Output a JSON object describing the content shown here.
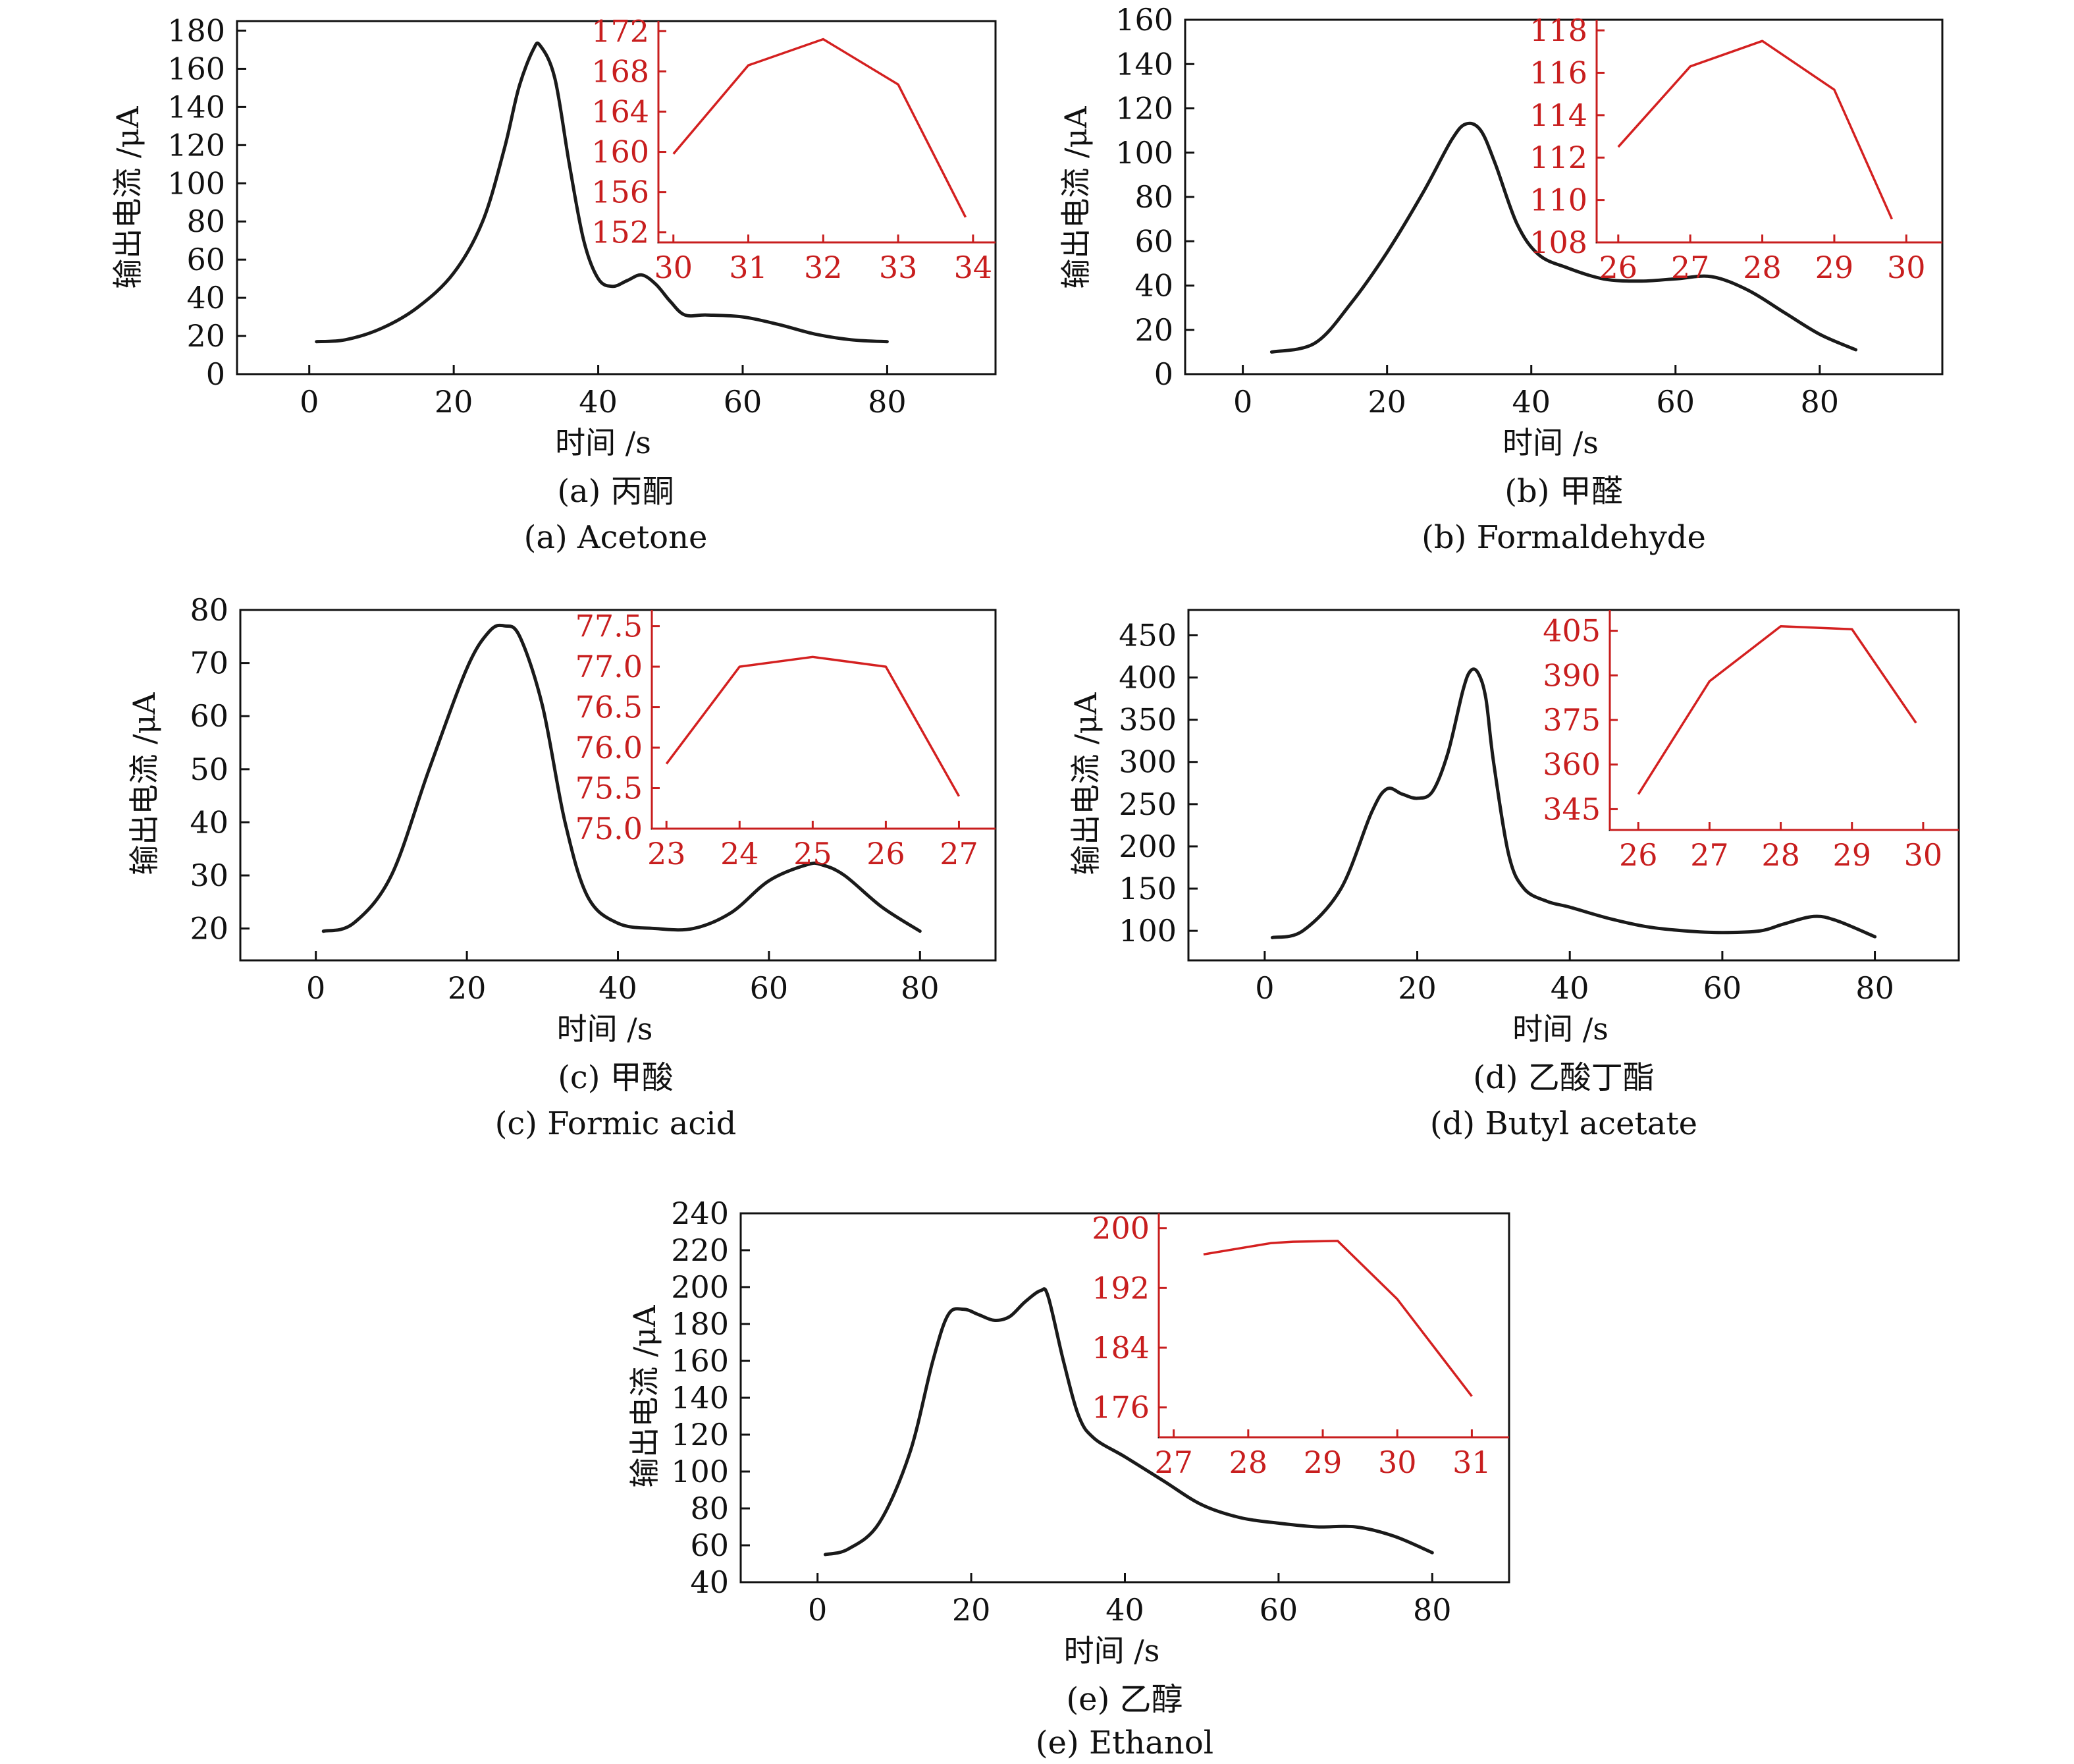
{
  "chart_data": [
    {
      "type": "line",
      "caption_zh": "(a) 丙酮",
      "caption_en": "(a) Acetone",
      "xlabel": "时间 /s",
      "ylabel": "输出电流 /μA",
      "xlim": [
        -10,
        95
      ],
      "ylim": [
        0,
        185
      ],
      "xticks": [
        0,
        20,
        40,
        60,
        80
      ],
      "yticks": [
        0,
        20,
        40,
        60,
        80,
        100,
        120,
        140,
        160,
        180
      ],
      "series": [
        {
          "x": [
            1,
            5,
            10,
            15,
            20,
            24,
            27,
            29,
            31,
            32,
            34,
            36,
            38,
            40,
            42,
            44,
            46,
            48,
            50,
            52,
            55,
            60,
            65,
            70,
            75,
            80
          ],
          "y": [
            17,
            18,
            24,
            35,
            53,
            80,
            118,
            150,
            170,
            172,
            155,
            110,
            70,
            50,
            46,
            49,
            52,
            47,
            38,
            31,
            31,
            30,
            26,
            21,
            18,
            17
          ]
        }
      ],
      "inset": {
        "xlim": [
          29.8,
          34.3
        ],
        "ylim": [
          151,
          173
        ],
        "xticks": [
          30,
          31,
          32,
          33,
          34
        ],
        "yticks": [
          152,
          156,
          160,
          164,
          168,
          172
        ],
        "x": [
          30,
          31,
          32,
          33,
          33.9
        ],
        "y": [
          159.8,
          168.6,
          171.2,
          166.7,
          153.5
        ]
      }
    },
    {
      "type": "line",
      "caption_zh": "(b) 甲醛",
      "caption_en": "(b) Formaldehyde",
      "xlabel": "时间 /s",
      "ylabel": "输出电流 /μA",
      "xlim": [
        -8,
        97
      ],
      "ylim": [
        0,
        160
      ],
      "xticks": [
        0,
        20,
        40,
        60,
        80
      ],
      "yticks": [
        0,
        20,
        40,
        60,
        80,
        100,
        120,
        140,
        160
      ],
      "series": [
        {
          "x": [
            4,
            10,
            15,
            20,
            25,
            29,
            31,
            33,
            35,
            38,
            41,
            45,
            50,
            55,
            60,
            65,
            70,
            75,
            80,
            85
          ],
          "y": [
            10,
            14,
            32,
            55,
            82,
            106,
            113,
            110,
            95,
            68,
            54,
            48,
            43,
            42,
            43,
            44,
            38,
            28,
            18,
            11
          ]
        }
      ],
      "inset": {
        "xlim": [
          25.7,
          30.5
        ],
        "ylim": [
          108,
          118.5
        ],
        "xticks": [
          26,
          27,
          28,
          29,
          30
        ],
        "yticks": [
          108,
          110,
          112,
          114,
          116,
          118
        ],
        "x": [
          26,
          27,
          28,
          29,
          29.8
        ],
        "y": [
          112.5,
          116.3,
          117.5,
          115.2,
          109.1
        ]
      }
    },
    {
      "type": "line",
      "caption_zh": "(c) 甲酸",
      "caption_en": "(c) Formic acid",
      "xlabel": "时间 /s",
      "ylabel": "输出电流 /μA",
      "xlim": [
        -10,
        90
      ],
      "ylim": [
        14,
        80
      ],
      "xticks": [
        0,
        20,
        40,
        60,
        80
      ],
      "yticks": [
        20,
        30,
        40,
        50,
        60,
        70,
        80
      ],
      "series": [
        {
          "x": [
            1,
            5,
            10,
            15,
            20,
            23,
            25,
            27,
            30,
            33,
            36,
            40,
            45,
            50,
            55,
            60,
            65,
            67,
            70,
            75,
            80
          ],
          "y": [
            19.5,
            21,
            30,
            50,
            69,
            76,
            77,
            75,
            62,
            40,
            26,
            21,
            20,
            20,
            23,
            29,
            32,
            32,
            30,
            24,
            19.5
          ]
        }
      ],
      "inset": {
        "xlim": [
          22.8,
          27.5
        ],
        "ylim": [
          75.0,
          77.7
        ],
        "xticks": [
          23,
          24,
          25,
          26,
          27
        ],
        "yticks": [
          75.0,
          75.5,
          76.0,
          76.5,
          77.0,
          77.5
        ],
        "x": [
          23,
          24,
          25,
          26,
          27
        ],
        "y": [
          75.8,
          77.0,
          77.12,
          77.0,
          75.4
        ]
      }
    },
    {
      "type": "line",
      "caption_zh": "(d) 乙酸丁酯",
      "caption_en": "(d) Butyl acetate",
      "xlabel": "时间 /s",
      "ylabel": "输出电流 /μA",
      "xlim": [
        -10,
        91
      ],
      "ylim": [
        65,
        480
      ],
      "xticks": [
        0,
        20,
        40,
        60,
        80
      ],
      "yticks": [
        100,
        150,
        200,
        250,
        300,
        350,
        400,
        450
      ],
      "series": [
        {
          "x": [
            1,
            5,
            10,
            14,
            16,
            18,
            20,
            22,
            24,
            26,
            27,
            28,
            29,
            30,
            32,
            34,
            37,
            40,
            45,
            50,
            55,
            60,
            65,
            68,
            72,
            75,
            80
          ],
          "y": [
            92,
            100,
            150,
            240,
            268,
            262,
            257,
            265,
            310,
            385,
            408,
            405,
            375,
            300,
            190,
            150,
            135,
            128,
            115,
            105,
            100,
            98,
            100,
            108,
            117,
            112,
            93
          ]
        }
      ],
      "inset": {
        "xlim": [
          25.6,
          30.5
        ],
        "ylim": [
          338,
          412
        ],
        "xticks": [
          26,
          27,
          28,
          29,
          30
        ],
        "yticks": [
          345,
          360,
          375,
          390,
          405
        ],
        "x": [
          26,
          27,
          28,
          29,
          29.9
        ],
        "y": [
          350,
          388,
          406.5,
          405.5,
          374
        ]
      }
    },
    {
      "type": "line",
      "caption_zh": "(e) 乙醇",
      "caption_en": "(e) Ethanol",
      "xlabel": "时间 /s",
      "ylabel": "输出电流 /μA",
      "xlim": [
        -10,
        90
      ],
      "ylim": [
        40,
        240
      ],
      "xticks": [
        0,
        20,
        40,
        60,
        80
      ],
      "yticks": [
        40,
        60,
        80,
        100,
        120,
        140,
        160,
        180,
        200,
        220,
        240
      ],
      "series": [
        {
          "x": [
            1,
            4,
            8,
            12,
            15,
            17,
            19,
            21,
            23,
            25,
            27,
            29,
            30,
            32,
            34,
            36,
            40,
            45,
            50,
            55,
            60,
            65,
            70,
            75,
            80
          ],
          "y": [
            55,
            58,
            72,
            110,
            160,
            185,
            188,
            185,
            182,
            184,
            192,
            198,
            195,
            160,
            130,
            118,
            108,
            95,
            82,
            75,
            72,
            70,
            70,
            65,
            56
          ]
        }
      ],
      "inset": {
        "xlim": [
          26.8,
          31.5
        ],
        "ylim": [
          172,
          202
        ],
        "xticks": [
          27,
          28,
          29,
          30,
          31
        ],
        "yticks": [
          176,
          184,
          192,
          200
        ],
        "x": [
          27.4,
          28.3,
          28.6,
          29.2,
          30,
          30.5,
          31
        ],
        "y": [
          196.5,
          198.0,
          198.2,
          198.3,
          190.5,
          184.0,
          177.5
        ]
      }
    }
  ]
}
